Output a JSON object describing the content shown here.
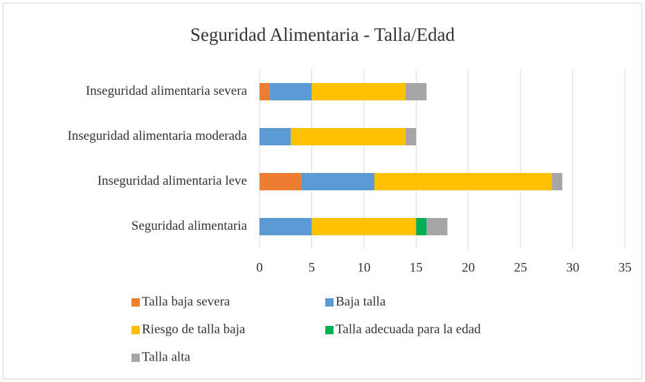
{
  "chart_data": {
    "type": "stacked_barh",
    "title": "Seguridad Alimentaria - Talla/Edad",
    "categories": [
      "Seguridad alimentaria",
      "Inseguridad alimentaria leve",
      "Inseguridad alimentaria moderada",
      "Inseguridad alimentaria severa"
    ],
    "series": [
      {
        "name": "Talla baja severa",
        "color": "#ed7d31",
        "values": [
          0,
          4,
          0,
          1
        ]
      },
      {
        "name": "Baja talla",
        "color": "#5b9bd5",
        "values": [
          5,
          7,
          3,
          4
        ]
      },
      {
        "name": "Riesgo de talla baja",
        "color": "#ffc000",
        "values": [
          10,
          17,
          11,
          9
        ]
      },
      {
        "name": "Talla adecuada para la edad",
        "color": "#00b050",
        "values": [
          1,
          0,
          0,
          0
        ]
      },
      {
        "name": "Talla alta",
        "color": "#a5a5a5",
        "values": [
          2,
          1,
          1,
          2
        ]
      }
    ],
    "xlim": [
      0,
      35
    ],
    "xticks": [
      0,
      5,
      10,
      15,
      20,
      25,
      30,
      35
    ],
    "grid": true,
    "legend": "bottom"
  }
}
